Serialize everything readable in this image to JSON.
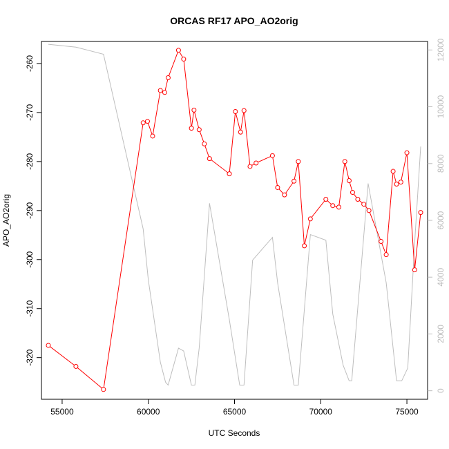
{
  "chart_data": {
    "type": "line",
    "title": "ORCAS RF17 APO_AO2orig",
    "xlabel": "UTC Seconds",
    "ylabel": "APO_AO2orig",
    "xlim": [
      53800,
      76200
    ],
    "ylim": [
      -328.5,
      -255.5
    ],
    "y2lim": [
      -300,
      12300
    ],
    "x_ticks": [
      55000,
      60000,
      65000,
      70000,
      75000
    ],
    "y_ticks": [
      -320,
      -310,
      -300,
      -290,
      -280,
      -270,
      -260
    ],
    "y2_ticks": [
      0,
      2000,
      4000,
      6000,
      8000,
      10000,
      12000
    ],
    "grid": false,
    "colors": {
      "apo": "#ff0000",
      "altitude": "#bebebe"
    },
    "series": [
      {
        "x": [
          54200,
          55800,
          57400,
          59700,
          59950,
          60250,
          60700,
          60950,
          61150,
          61750,
          62050,
          62500,
          62650,
          62950,
          63250,
          63550,
          64700,
          65050,
          65350,
          65550,
          65900,
          66250,
          67200,
          67500,
          67900,
          68450,
          68700,
          69050,
          69400,
          70300,
          70700,
          71050,
          71400,
          71650,
          71850,
          72150,
          72500,
          72800,
          73500,
          73800,
          74200,
          74400,
          74650,
          75000,
          75450,
          75800
        ],
        "values": [
          -317.5,
          -321.8,
          -326.5,
          -272.1,
          -271.8,
          -274.8,
          -265.5,
          -265.9,
          -262.9,
          -257.3,
          -259.1,
          -273.2,
          -269.5,
          -273.5,
          -276.4,
          -279.4,
          -282.5,
          -269.8,
          -274.0,
          -269.6,
          -281.0,
          -280.3,
          -278.8,
          -285.3,
          -286.8,
          -284.0,
          -280.0,
          -297.2,
          -291.7,
          -287.7,
          -289.0,
          -289.3,
          -280.0,
          -283.9,
          -286.3,
          -287.7,
          -288.7,
          -290.0,
          -296.3,
          -299.0,
          -282.0,
          -284.6,
          -284.2,
          -278.2,
          -302.1,
          -290.4
        ]
      },
      {
        "x": [
          54200,
          55800,
          57400,
          59700,
          60000,
          60700,
          61000,
          61150,
          61750,
          62050,
          62500,
          62700,
          62950,
          63550,
          64700,
          65300,
          65550,
          66050,
          67200,
          67500,
          68450,
          68700,
          69400,
          70300,
          70700,
          71300,
          71650,
          71800,
          72750,
          73800,
          74400,
          74700,
          75050,
          75450,
          75800
        ],
        "values": [
          12200,
          12100,
          11850,
          5700,
          3900,
          1000,
          300,
          200,
          1500,
          1400,
          200,
          200,
          1500,
          6600,
          2500,
          200,
          200,
          4600,
          5400,
          3800,
          200,
          200,
          5500,
          5300,
          2700,
          900,
          350,
          350,
          7300,
          3800,
          350,
          350,
          800,
          5200,
          8600
        ]
      }
    ]
  }
}
